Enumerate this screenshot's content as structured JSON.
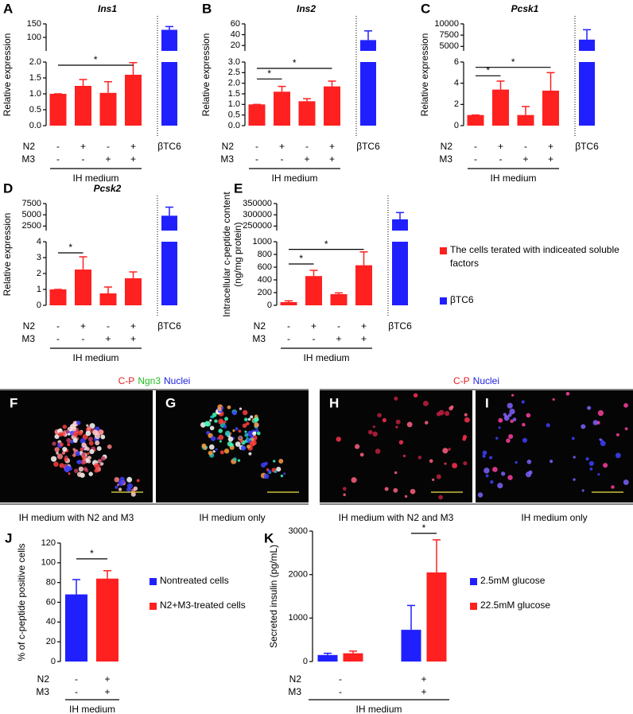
{
  "chart_data": [
    {
      "type": "bar",
      "panel": "A",
      "title": "Ins1",
      "y_label": [
        "Relative expression"
      ],
      "ylim": [
        0,
        2
      ],
      "yticks": [
        {
          "value": 0,
          "label": "0.0"
        },
        {
          "value": 0.5,
          "label": "0.5"
        },
        {
          "value": 1,
          "label": "1.0"
        },
        {
          "value": 1.5,
          "label": "1.5"
        },
        {
          "value": 2,
          "label": "2.0"
        }
      ],
      "ylim_upper": [
        50,
        150
      ],
      "yticks_upper": [
        100,
        150
      ],
      "row_labels": [
        "N2",
        "M3"
      ],
      "conditions": [
        [
          "-",
          "+",
          "-",
          "+"
        ],
        [
          "-",
          "-",
          "+",
          "+"
        ]
      ],
      "group_label": "IH medium",
      "series": [
        {
          "color": "#ff2020",
          "values": [
            1,
            1.25,
            1.03,
            1.6
          ],
          "errors": [
            0,
            0.2,
            0.35,
            0.38
          ]
        },
        {
          "name": "βTC6",
          "color": "#2020ff",
          "values": [
            128
          ],
          "errors": [
            12
          ],
          "axis": "upper"
        }
      ],
      "significance": [
        {
          "between": [
            0,
            3
          ],
          "y": 1.9,
          "label": "*"
        }
      ]
    },
    {
      "type": "bar",
      "panel": "B",
      "title": "Ins2",
      "y_label": [
        "Relative expression"
      ],
      "ylim": [
        0,
        3
      ],
      "yticks": [
        {
          "value": 0,
          "label": "0.0"
        },
        {
          "value": 0.5,
          "label": "0.5"
        },
        {
          "value": 1,
          "label": "1.0"
        },
        {
          "value": 1.5,
          "label": "1.5"
        },
        {
          "value": 2,
          "label": "2.0"
        },
        {
          "value": 2.5,
          "label": "2.5"
        },
        {
          "value": 3,
          "label": "3.0"
        }
      ],
      "ylim_upper": [
        10,
        60
      ],
      "yticks_upper": [
        20,
        40,
        60
      ],
      "row_labels": [
        "N2",
        "M3"
      ],
      "conditions": [
        [
          "-",
          "+",
          "-",
          "+"
        ],
        [
          "-",
          "-",
          "+",
          "+"
        ]
      ],
      "group_label": "IH medium",
      "series": [
        {
          "color": "#ff2020",
          "values": [
            1,
            1.6,
            1.15,
            1.85
          ],
          "errors": [
            0,
            0.25,
            0.12,
            0.25
          ]
        },
        {
          "name": "βTC6",
          "color": "#2020ff",
          "values": [
            30
          ],
          "errors": [
            17
          ],
          "axis": "upper"
        }
      ],
      "significance": [
        {
          "between": [
            0,
            1
          ],
          "y": 2.2,
          "label": "*"
        },
        {
          "between": [
            0,
            3
          ],
          "y": 2.7,
          "label": "*"
        }
      ]
    },
    {
      "type": "bar",
      "panel": "C",
      "title": "Pcsk1",
      "y_label": [
        "Relative expression"
      ],
      "ylim": [
        0,
        6
      ],
      "yticks": [
        0,
        2,
        4,
        6
      ],
      "ylim_upper": [
        4000,
        10000
      ],
      "yticks_upper": [
        5000,
        7500,
        10000
      ],
      "row_labels": [
        "N2",
        "M3"
      ],
      "conditions": [
        [
          "-",
          "+",
          "-",
          "+"
        ],
        [
          "-",
          "-",
          "+",
          "+"
        ]
      ],
      "group_label": "IH medium",
      "series": [
        {
          "color": "#ff2020",
          "values": [
            1,
            3.4,
            1,
            3.3
          ],
          "errors": [
            0,
            0.8,
            0.8,
            1.7
          ]
        },
        {
          "name": "βTC6",
          "color": "#2020ff",
          "values": [
            6500
          ],
          "errors": [
            2200
          ],
          "axis": "upper"
        }
      ],
      "significance": [
        {
          "between": [
            0,
            1
          ],
          "y": 4.7,
          "label": "*"
        },
        {
          "between": [
            0,
            3
          ],
          "y": 5.5,
          "label": "*"
        }
      ]
    },
    {
      "type": "bar",
      "panel": "D",
      "title": "Pcsk2",
      "y_label": [
        "Relative expression"
      ],
      "ylim": [
        0,
        4
      ],
      "yticks": [
        0,
        1,
        2,
        3,
        4
      ],
      "ylim_upper": [
        1500,
        7500
      ],
      "yticks_upper": [
        2500,
        5000,
        7500
      ],
      "row_labels": [
        "N2",
        "M3"
      ],
      "conditions": [
        [
          "-",
          "+",
          "-",
          "+"
        ],
        [
          "-",
          "-",
          "+",
          "+"
        ]
      ],
      "group_label": "IH medium",
      "series": [
        {
          "color": "#ff2020",
          "values": [
            1,
            2.25,
            0.75,
            1.7
          ],
          "errors": [
            0,
            0.8,
            0.4,
            0.4
          ]
        },
        {
          "name": "βTC6",
          "color": "#2020ff",
          "values": [
            4800
          ],
          "errors": [
            1900
          ],
          "axis": "upper"
        }
      ],
      "significance": [
        {
          "between": [
            0,
            1
          ],
          "y": 3.3,
          "label": "*"
        }
      ]
    },
    {
      "type": "bar",
      "panel": "E",
      "y_label": [
        "Intracellular c-peptide content",
        "(ng/mg protein)"
      ],
      "ylim": [
        0,
        1000
      ],
      "yticks": [
        0,
        200,
        400,
        600,
        800,
        1000
      ],
      "ylim_upper": [
        230000,
        350000
      ],
      "yticks_upper": [
        250000,
        300000,
        350000
      ],
      "row_labels": [
        "N2",
        "M3"
      ],
      "conditions": [
        [
          "-",
          "+",
          "-",
          "+"
        ],
        [
          "-",
          "-",
          "+",
          "+"
        ]
      ],
      "group_label": "IH medium",
      "series": [
        {
          "name": "The cells terated with indiceated soluble factors",
          "color": "#ff2020",
          "values": [
            50,
            460,
            175,
            630
          ],
          "errors": [
            20,
            90,
            20,
            210
          ]
        },
        {
          "name": "βTC6",
          "color": "#2020ff",
          "values": [
            280000
          ],
          "errors": [
            30000
          ],
          "axis": "upper"
        }
      ],
      "significance": [
        {
          "between": [
            0,
            1
          ],
          "y": 650,
          "label": "*"
        },
        {
          "between": [
            0,
            3
          ],
          "y": 880,
          "label": "*"
        }
      ],
      "legend": "right"
    },
    {
      "type": "bar",
      "panel": "J",
      "y_label": [
        "% of c-peptide positive cells"
      ],
      "ylim": [
        0,
        120
      ],
      "yticks": [
        0,
        20,
        40,
        60,
        80,
        100,
        120
      ],
      "row_labels": [
        "N2",
        "M3"
      ],
      "conditions": [
        [
          "-",
          "+"
        ],
        [
          "-",
          "+"
        ]
      ],
      "group_label": "IH medium",
      "series": [
        {
          "name": "Nontreated cells",
          "color": "#2020ff",
          "values": [
            68
          ],
          "errors": [
            15
          ]
        },
        {
          "name": "N2+M3-treated cells",
          "color": "#ff2020",
          "values": [
            84
          ],
          "errors": [
            8
          ]
        }
      ],
      "significance": [
        {
          "between": [
            0,
            1
          ],
          "y": 104,
          "label": "*"
        }
      ],
      "legend": "right"
    },
    {
      "type": "bar",
      "panel": "K",
      "y_label": [
        "Secreted insulin (pg/mL)"
      ],
      "ylim": [
        0,
        3000
      ],
      "yticks": [
        0,
        1000,
        2000,
        3000
      ],
      "row_labels": [
        "N2",
        "M3"
      ],
      "conditions": [
        [
          "-",
          "+"
        ],
        [
          "-",
          "+"
        ]
      ],
      "group_label": "IH medium",
      "series": [
        {
          "name": "2.5mM glucose",
          "color": "#2020ff",
          "values": [
            150,
            730
          ],
          "errors": [
            40,
            560
          ]
        },
        {
          "name": "22.5mM glucose",
          "color": "#ff2020",
          "values": [
            190,
            2050
          ],
          "errors": [
            50,
            750
          ]
        }
      ],
      "significance": [
        {
          "between": [
            1,
            3
          ],
          "y": 2950,
          "label": "*"
        }
      ],
      "legend": "right"
    }
  ],
  "images": {
    "groups": [
      {
        "header": [
          {
            "text": "C-P",
            "color": "#e02020"
          },
          {
            "text": "Ngn3",
            "color": "#20c020"
          },
          {
            "text": "Nuclei",
            "color": "#2020e0"
          }
        ],
        "panels": [
          {
            "letter": "F",
            "caption": "IH medium with N2 and M3"
          },
          {
            "letter": "G",
            "caption": "IH medium only"
          }
        ]
      },
      {
        "header": [
          {
            "text": "C-P",
            "color": "#e02020"
          },
          {
            "text": "Nuclei",
            "color": "#2020e0"
          }
        ],
        "panels": [
          {
            "letter": "H",
            "caption": "IH medium with N2 and M3"
          },
          {
            "letter": "I",
            "caption": "IH medium only"
          }
        ]
      }
    ]
  }
}
